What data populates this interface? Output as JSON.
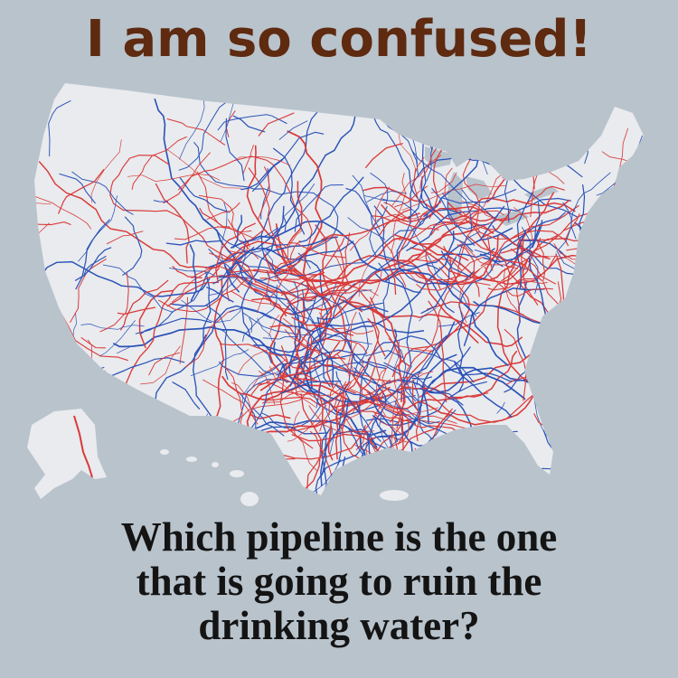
{
  "headline": "I am so confused!",
  "caption": {
    "line1": "Which pipeline is the one",
    "line2": "that is going to ruin the",
    "line3": "drinking water?"
  },
  "map": {
    "land_color": "#e9ebee",
    "background_color": "#b9c3cc",
    "pipeline_colors": [
      "#d93a3a",
      "#2a52b8"
    ]
  }
}
